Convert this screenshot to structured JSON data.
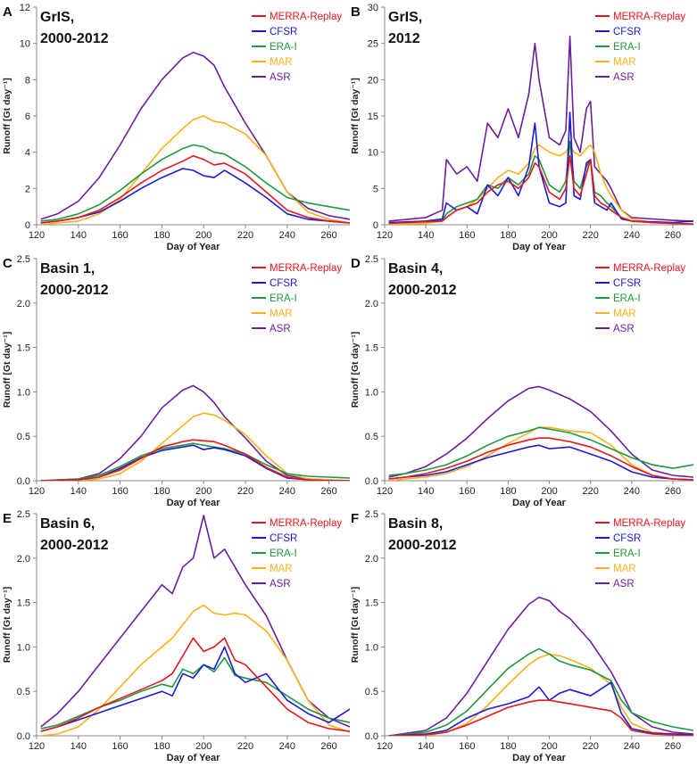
{
  "figure": {
    "x_label": "Day of Year",
    "y_label": "Runoff [Gt day⁻¹]",
    "x_ticks": [
      120,
      140,
      160,
      180,
      200,
      220,
      240,
      260
    ],
    "xlim": [
      120,
      270
    ],
    "series_colors": {
      "MERRA-Replay": "#e8161c",
      "CFSR": "#1a1adb",
      "ERA-I": "#1d9a3c",
      "MAR": "#f5b117",
      "ASR": "#6a1fa0"
    }
  },
  "chart_data": [
    {
      "type": "line",
      "panel": "A",
      "title_line1": "GrIS,",
      "title_line2": "2000-2012",
      "xlabel": "Day of Year",
      "ylabel": "Runoff [Gt day⁻¹]",
      "xlim": [
        120,
        270
      ],
      "ylim": [
        0,
        12
      ],
      "y_ticks": [
        0,
        2,
        4,
        6,
        8,
        10,
        12
      ],
      "y_tick_labels": [
        "0",
        "2",
        "4",
        "6",
        "8",
        "10",
        "12"
      ],
      "x": [
        122,
        130,
        140,
        150,
        160,
        170,
        180,
        190,
        195,
        200,
        205,
        210,
        220,
        230,
        240,
        250,
        260,
        270
      ],
      "series": [
        {
          "name": "MERRA-Replay",
          "values": [
            0.1,
            0.2,
            0.4,
            0.8,
            1.5,
            2.3,
            3.0,
            3.5,
            3.8,
            3.6,
            3.3,
            3.4,
            2.8,
            1.8,
            0.8,
            0.4,
            0.2,
            0.1
          ]
        },
        {
          "name": "CFSR",
          "values": [
            0.1,
            0.2,
            0.4,
            0.7,
            1.3,
            2.0,
            2.6,
            3.1,
            3.0,
            2.7,
            2.6,
            3.0,
            2.3,
            1.5,
            0.6,
            0.3,
            0.2,
            0.1
          ]
        },
        {
          "name": "ERA-I",
          "values": [
            0.2,
            0.3,
            0.6,
            1.1,
            1.9,
            2.8,
            3.6,
            4.2,
            4.4,
            4.3,
            4.0,
            3.9,
            3.2,
            2.3,
            1.5,
            1.2,
            1.0,
            0.8
          ]
        },
        {
          "name": "MAR",
          "values": [
            0.0,
            0.1,
            0.2,
            0.6,
            1.4,
            2.8,
            4.2,
            5.3,
            5.8,
            6.0,
            5.7,
            5.6,
            5.0,
            3.8,
            1.8,
            0.7,
            0.3,
            0.1
          ]
        },
        {
          "name": "ASR",
          "values": [
            0.3,
            0.6,
            1.3,
            2.6,
            4.4,
            6.4,
            8.0,
            9.2,
            9.5,
            9.3,
            8.8,
            7.6,
            5.6,
            3.8,
            1.8,
            0.9,
            0.5,
            0.3
          ]
        }
      ]
    },
    {
      "type": "line",
      "panel": "B",
      "title_line1": "GrIS,",
      "title_line2": "2012",
      "xlabel": "Day of Year",
      "ylabel": "Runoff [Gt day⁻¹]",
      "xlim": [
        120,
        270
      ],
      "ylim": [
        0,
        30
      ],
      "y_ticks": [
        0,
        5,
        10,
        15,
        20,
        25,
        30
      ],
      "y_tick_labels": [
        "0",
        "5",
        "10",
        "15",
        "20",
        "25",
        "30"
      ],
      "x": [
        122,
        140,
        148,
        150,
        155,
        160,
        165,
        170,
        175,
        180,
        185,
        190,
        193,
        195,
        200,
        205,
        208,
        210,
        212,
        215,
        218,
        220,
        222,
        225,
        228,
        230,
        235,
        240,
        250,
        260,
        270
      ],
      "series": [
        {
          "name": "MERRA-Replay",
          "values": [
            0.2,
            0.4,
            0.5,
            1.0,
            2.0,
            2.5,
            3.0,
            4.5,
            5.5,
            6.0,
            5.0,
            6.5,
            8.5,
            8.0,
            4.5,
            3.5,
            5.0,
            9.5,
            5.0,
            4.0,
            7.0,
            9.0,
            4.0,
            3.0,
            2.5,
            2.0,
            1.0,
            0.5,
            0.3,
            0.2,
            0.1
          ]
        },
        {
          "name": "CFSR",
          "values": [
            0.3,
            0.5,
            0.8,
            3.0,
            2.0,
            2.5,
            1.5,
            5.5,
            4.0,
            6.5,
            4.0,
            8.0,
            14.0,
            8.0,
            3.0,
            2.5,
            3.0,
            15.5,
            4.0,
            3.5,
            8.5,
            9.0,
            3.0,
            2.5,
            2.0,
            3.0,
            0.8,
            0.5,
            0.4,
            0.3,
            0.5
          ]
        },
        {
          "name": "ERA-I",
          "values": [
            0.2,
            0.5,
            0.6,
            1.5,
            2.5,
            3.0,
            3.5,
            5.5,
            5.0,
            6.5,
            5.5,
            7.0,
            9.5,
            9.0,
            5.5,
            4.5,
            6.0,
            11.5,
            6.0,
            5.0,
            8.0,
            9.0,
            4.5,
            4.0,
            3.0,
            2.5,
            1.0,
            0.5,
            0.3,
            0.2,
            0.1
          ]
        },
        {
          "name": "MAR",
          "values": [
            0.0,
            0.2,
            0.5,
            1.0,
            2.0,
            2.5,
            3.5,
            5.0,
            6.5,
            7.5,
            7.0,
            8.5,
            10.5,
            11.0,
            10.0,
            9.5,
            10.0,
            11.0,
            10.0,
            9.5,
            10.5,
            11.0,
            10.0,
            7.0,
            5.0,
            4.0,
            2.0,
            0.8,
            0.3,
            0.2,
            0.1
          ]
        },
        {
          "name": "ASR",
          "values": [
            0.5,
            1.0,
            2.0,
            9.0,
            7.0,
            8.0,
            6.0,
            14.0,
            12.0,
            16.0,
            12.0,
            18.0,
            25.0,
            20.0,
            12.0,
            11.0,
            13.0,
            26.0,
            12.0,
            10.0,
            16.0,
            17.0,
            8.0,
            7.0,
            6.0,
            5.0,
            2.0,
            1.0,
            0.8,
            0.6,
            0.5
          ]
        }
      ]
    },
    {
      "type": "line",
      "panel": "C",
      "title_line1": "Basin 1,",
      "title_line2": "2000-2012",
      "xlabel": "Day of Year",
      "ylabel": "Runoff [Gt day⁻¹]",
      "xlim": [
        120,
        270
      ],
      "ylim": [
        0,
        2.5
      ],
      "y_ticks": [
        0,
        0.5,
        1.0,
        1.5,
        2.0,
        2.5
      ],
      "y_tick_labels": [
        "0.0",
        "0.5",
        "1.0",
        "1.5",
        "2.0",
        "2.5"
      ],
      "x": [
        122,
        140,
        150,
        160,
        170,
        180,
        190,
        195,
        200,
        205,
        210,
        220,
        230,
        240,
        250,
        260,
        270
      ],
      "series": [
        {
          "name": "MERRA-Replay",
          "values": [
            0.0,
            0.01,
            0.04,
            0.12,
            0.25,
            0.38,
            0.44,
            0.46,
            0.45,
            0.44,
            0.4,
            0.3,
            0.15,
            0.04,
            0.01,
            0.0,
            0.0
          ]
        },
        {
          "name": "CFSR",
          "values": [
            0.0,
            0.01,
            0.04,
            0.14,
            0.26,
            0.34,
            0.38,
            0.4,
            0.35,
            0.37,
            0.35,
            0.28,
            0.14,
            0.03,
            0.01,
            0.0,
            0.0
          ]
        },
        {
          "name": "ERA-I",
          "values": [
            0.0,
            0.02,
            0.06,
            0.16,
            0.28,
            0.36,
            0.4,
            0.42,
            0.4,
            0.38,
            0.36,
            0.3,
            0.18,
            0.08,
            0.05,
            0.04,
            0.03
          ]
        },
        {
          "name": "MAR",
          "values": [
            0.0,
            0.0,
            0.02,
            0.08,
            0.22,
            0.42,
            0.62,
            0.72,
            0.76,
            0.74,
            0.68,
            0.52,
            0.28,
            0.08,
            0.02,
            0.01,
            0.0
          ]
        },
        {
          "name": "ASR",
          "values": [
            0.0,
            0.02,
            0.08,
            0.25,
            0.5,
            0.82,
            1.02,
            1.07,
            1.0,
            0.88,
            0.72,
            0.48,
            0.22,
            0.06,
            0.02,
            0.01,
            0.0
          ]
        }
      ]
    },
    {
      "type": "line",
      "panel": "D",
      "title_line1": "Basin 4,",
      "title_line2": "2000-2012",
      "xlabel": "Day of Year",
      "ylabel": "Runoff [Gt day⁻¹]",
      "xlim": [
        120,
        270
      ],
      "ylim": [
        0,
        2.5
      ],
      "y_ticks": [
        0,
        0.5,
        1.0,
        1.5,
        2.0,
        2.5
      ],
      "y_tick_labels": [
        "0.0",
        "0.5",
        "1.0",
        "1.5",
        "2.0",
        "2.5"
      ],
      "x": [
        122,
        130,
        140,
        150,
        160,
        170,
        180,
        190,
        195,
        200,
        210,
        220,
        230,
        240,
        250,
        260,
        270
      ],
      "series": [
        {
          "name": "MERRA-Replay",
          "values": [
            0.02,
            0.04,
            0.08,
            0.14,
            0.22,
            0.32,
            0.4,
            0.46,
            0.48,
            0.48,
            0.44,
            0.38,
            0.28,
            0.16,
            0.06,
            0.02,
            0.01
          ]
        },
        {
          "name": "CFSR",
          "values": [
            0.02,
            0.04,
            0.06,
            0.1,
            0.18,
            0.26,
            0.32,
            0.38,
            0.4,
            0.36,
            0.38,
            0.3,
            0.22,
            0.1,
            0.04,
            0.02,
            0.01
          ]
        },
        {
          "name": "ERA-I",
          "values": [
            0.06,
            0.08,
            0.12,
            0.18,
            0.28,
            0.4,
            0.5,
            0.56,
            0.6,
            0.58,
            0.54,
            0.46,
            0.36,
            0.26,
            0.18,
            0.14,
            0.18
          ]
        },
        {
          "name": "MAR",
          "values": [
            0.0,
            0.02,
            0.04,
            0.08,
            0.16,
            0.28,
            0.42,
            0.54,
            0.6,
            0.6,
            0.56,
            0.54,
            0.4,
            0.18,
            0.06,
            0.02,
            0.01
          ]
        },
        {
          "name": "ASR",
          "values": [
            0.04,
            0.08,
            0.16,
            0.3,
            0.48,
            0.7,
            0.9,
            1.04,
            1.06,
            1.02,
            0.92,
            0.78,
            0.56,
            0.3,
            0.12,
            0.06,
            0.04
          ]
        }
      ]
    },
    {
      "type": "line",
      "panel": "E",
      "title_line1": "Basin 6,",
      "title_line2": "2000-2012",
      "xlabel": "Day of Year",
      "ylabel": "Runoff [Gt day⁻¹]",
      "xlim": [
        120,
        270
      ],
      "ylim": [
        0,
        2.5
      ],
      "y_ticks": [
        0,
        0.5,
        1.0,
        1.5,
        2.0,
        2.5
      ],
      "y_tick_labels": [
        "0.0",
        "0.5",
        "1.0",
        "1.5",
        "2.0",
        "2.5"
      ],
      "x": [
        122,
        130,
        140,
        150,
        160,
        170,
        180,
        185,
        190,
        195,
        200,
        205,
        210,
        215,
        220,
        230,
        240,
        250,
        260,
        270
      ],
      "series": [
        {
          "name": "MERRA-Replay",
          "values": [
            0.05,
            0.1,
            0.2,
            0.32,
            0.42,
            0.52,
            0.62,
            0.7,
            0.9,
            1.1,
            0.95,
            1.0,
            1.1,
            0.85,
            0.8,
            0.55,
            0.3,
            0.15,
            0.08,
            0.05
          ]
        },
        {
          "name": "CFSR",
          "values": [
            0.05,
            0.1,
            0.18,
            0.26,
            0.34,
            0.42,
            0.5,
            0.45,
            0.7,
            0.65,
            0.8,
            0.75,
            1.0,
            0.7,
            0.6,
            0.7,
            0.4,
            0.25,
            0.15,
            0.3
          ]
        },
        {
          "name": "ERA-I",
          "values": [
            0.08,
            0.12,
            0.22,
            0.32,
            0.4,
            0.5,
            0.58,
            0.55,
            0.75,
            0.7,
            0.8,
            0.72,
            0.88,
            0.68,
            0.65,
            0.6,
            0.45,
            0.3,
            0.2,
            0.15
          ]
        },
        {
          "name": "MAR",
          "values": [
            0.0,
            0.02,
            0.1,
            0.3,
            0.55,
            0.8,
            1.0,
            1.1,
            1.25,
            1.4,
            1.47,
            1.38,
            1.36,
            1.38,
            1.36,
            1.18,
            0.85,
            0.4,
            0.12,
            0.04
          ]
        },
        {
          "name": "ASR",
          "values": [
            0.1,
            0.25,
            0.5,
            0.8,
            1.1,
            1.4,
            1.7,
            1.6,
            1.9,
            2.0,
            2.48,
            2.0,
            2.1,
            1.9,
            1.7,
            1.35,
            0.85,
            0.4,
            0.2,
            0.1
          ]
        }
      ]
    },
    {
      "type": "line",
      "panel": "F",
      "title_line1": "Basin 8,",
      "title_line2": "2000-2012",
      "xlabel": "Day of Year",
      "ylabel": "Runoff [Gt day⁻¹]",
      "xlim": [
        120,
        270
      ],
      "ylim": [
        0,
        2.5
      ],
      "y_ticks": [
        0,
        0.5,
        1.0,
        1.5,
        2.0,
        2.5
      ],
      "y_tick_labels": [
        "0.0",
        "0.5",
        "1.0",
        "1.5",
        "2.0",
        "2.5"
      ],
      "x": [
        122,
        140,
        150,
        160,
        170,
        180,
        190,
        195,
        200,
        205,
        210,
        220,
        230,
        235,
        240,
        250,
        260,
        270
      ],
      "series": [
        {
          "name": "MERRA-Replay",
          "values": [
            0.0,
            0.01,
            0.04,
            0.12,
            0.22,
            0.32,
            0.38,
            0.4,
            0.4,
            0.38,
            0.36,
            0.32,
            0.28,
            0.2,
            0.06,
            0.02,
            0.01,
            0.0
          ]
        },
        {
          "name": "CFSR",
          "values": [
            0.0,
            0.02,
            0.06,
            0.2,
            0.3,
            0.36,
            0.44,
            0.55,
            0.4,
            0.48,
            0.52,
            0.45,
            0.6,
            0.25,
            0.08,
            0.03,
            0.02,
            0.01
          ]
        },
        {
          "name": "ERA-I",
          "values": [
            0.0,
            0.04,
            0.12,
            0.28,
            0.52,
            0.76,
            0.92,
            0.98,
            0.92,
            0.84,
            0.8,
            0.74,
            0.62,
            0.4,
            0.26,
            0.16,
            0.1,
            0.06
          ]
        },
        {
          "name": "MAR",
          "values": [
            0.0,
            0.0,
            0.04,
            0.14,
            0.34,
            0.58,
            0.8,
            0.88,
            0.92,
            0.9,
            0.86,
            0.76,
            0.58,
            0.32,
            0.14,
            0.04,
            0.02,
            0.01
          ]
        },
        {
          "name": "ASR",
          "values": [
            0.0,
            0.06,
            0.2,
            0.48,
            0.84,
            1.2,
            1.48,
            1.56,
            1.52,
            1.4,
            1.32,
            1.06,
            0.72,
            0.5,
            0.26,
            0.1,
            0.04,
            0.02
          ]
        }
      ]
    }
  ]
}
